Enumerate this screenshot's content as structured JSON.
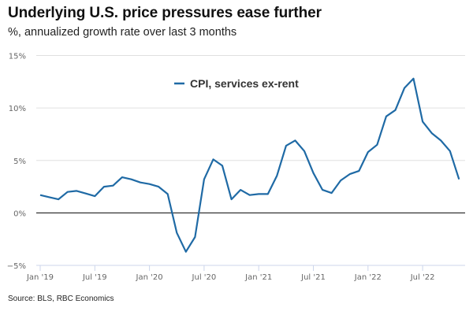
{
  "header": {
    "title": "Underlying U.S. price pressures ease further",
    "subtitle": "%, annualized growth rate over last 3 months"
  },
  "footer": {
    "source": "Source: BLS, RBC Economics"
  },
  "colors": {
    "series": "#1f6aa5",
    "zero_line": "#333333",
    "grid": "#e0e0e0",
    "axis": "#ccd6eb"
  },
  "chart_data": {
    "type": "line",
    "title": "Underlying U.S. price pressures ease further",
    "subtitle": "%, annualized growth rate over last 3 months",
    "xlabel": "",
    "ylabel": "",
    "ylim": [
      -5,
      15
    ],
    "yticks": [
      -5,
      0,
      5,
      10,
      15
    ],
    "ytick_labels": [
      "−5%",
      "0%",
      "5%",
      "10%",
      "15%"
    ],
    "xticks": [
      "Jan '19",
      "Jul '19",
      "Jan '20",
      "Jul '20",
      "Jan '21",
      "Jul '21",
      "Jan '22",
      "Jul '22"
    ],
    "xtick_month_index": [
      0,
      6,
      12,
      18,
      24,
      30,
      36,
      42
    ],
    "grid": true,
    "legend": "top-center",
    "x": [
      "Jan '19",
      "Feb '19",
      "Mar '19",
      "Apr '19",
      "May '19",
      "Jun '19",
      "Jul '19",
      "Aug '19",
      "Sep '19",
      "Oct '19",
      "Nov '19",
      "Dec '19",
      "Jan '20",
      "Feb '20",
      "Mar '20",
      "Apr '20",
      "May '20",
      "Jun '20",
      "Jul '20",
      "Aug '20",
      "Sep '20",
      "Oct '20",
      "Nov '20",
      "Dec '20",
      "Jan '21",
      "Feb '21",
      "Mar '21",
      "Apr '21",
      "May '21",
      "Jun '21",
      "Jul '21",
      "Aug '21",
      "Sep '21",
      "Oct '21",
      "Nov '21",
      "Dec '21",
      "Jan '22",
      "Feb '22",
      "Mar '22",
      "Apr '22",
      "May '22",
      "Jun '22",
      "Jul '22",
      "Aug '22",
      "Sep '22",
      "Oct '22",
      "Nov '22"
    ],
    "series": [
      {
        "name": "CPI, services ex-rent",
        "values": [
          1.7,
          1.5,
          1.3,
          2.0,
          2.1,
          1.85,
          1.6,
          2.5,
          2.6,
          3.4,
          3.2,
          2.9,
          2.75,
          2.5,
          1.8,
          -1.9,
          -3.7,
          -2.3,
          3.2,
          5.1,
          4.5,
          1.3,
          2.2,
          1.7,
          1.8,
          1.8,
          3.55,
          6.4,
          6.9,
          5.9,
          3.8,
          2.2,
          1.9,
          3.1,
          3.7,
          4.0,
          5.8,
          6.5,
          9.2,
          9.8,
          11.9,
          12.8,
          8.7,
          7.6,
          6.9,
          5.9,
          3.2
        ]
      }
    ]
  }
}
